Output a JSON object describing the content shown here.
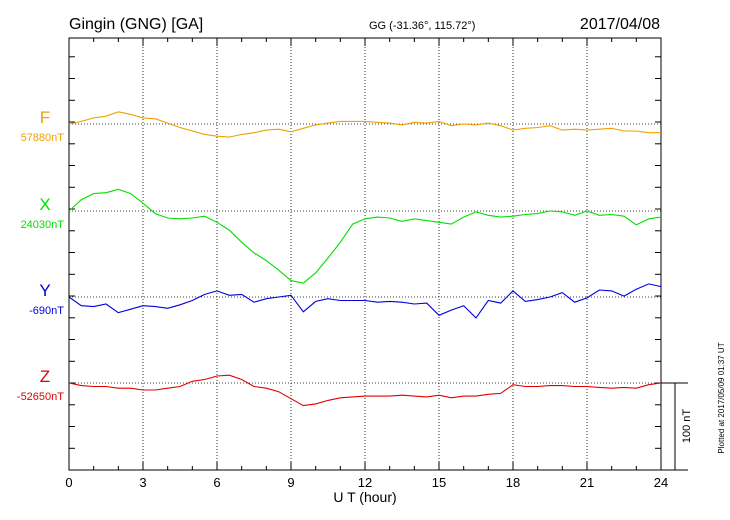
{
  "header": {
    "station": "Gingin (GNG)  [GA]",
    "coords": "GG (-31.36°, 115.72°)",
    "date": "2017/04/08"
  },
  "plotted_note": "Plotted at 2017/05/09 01:37 UT",
  "scale_bar_label": "100 nT",
  "chart_data": {
    "type": "line",
    "xlabel": "U T (hour)",
    "xlim": [
      0,
      24
    ],
    "xticks": [
      0,
      3,
      6,
      9,
      12,
      15,
      18,
      21,
      24
    ],
    "scale_nT_per_bar": 100,
    "series": [
      {
        "name": "F",
        "baseline_label": "57880nT",
        "color": "#f0a000",
        "x": [
          0,
          0.5,
          1,
          1.5,
          2,
          2.5,
          3,
          3.5,
          4,
          4.5,
          5,
          5.5,
          6,
          6.5,
          7,
          7.5,
          8,
          8.5,
          9,
          9.5,
          10,
          10.5,
          11,
          11.5,
          12,
          12.5,
          13,
          13.5,
          14,
          14.5,
          15,
          15.5,
          16,
          16.5,
          17,
          17.5,
          18,
          18.5,
          19,
          19.5,
          20,
          20.5,
          21,
          21.5,
          22,
          22.5,
          23,
          23.5,
          24
        ],
        "values": [
          57890,
          57893,
          57897,
          57899,
          57904,
          57901,
          57897,
          57896,
          57891,
          57886,
          57882,
          57878,
          57876,
          57875,
          57878,
          57880,
          57883,
          57884,
          57881,
          57885,
          57889,
          57891,
          57893,
          57893,
          57893,
          57892,
          57891,
          57889,
          57892,
          57891,
          57893,
          57888,
          57890,
          57889,
          57891,
          57888,
          57883,
          57885,
          57886,
          57888,
          57883,
          57884,
          57883,
          57884,
          57885,
          57882,
          57882,
          57880,
          57880
        ]
      },
      {
        "name": "X",
        "baseline_label": "24030nT",
        "color": "#00e000",
        "x": [
          0,
          0.5,
          1,
          1.5,
          2,
          2.5,
          3,
          3.5,
          4,
          4.5,
          5,
          5.5,
          6,
          6.5,
          7,
          7.5,
          8,
          8.5,
          9,
          9.5,
          10,
          10.5,
          11,
          11.5,
          12,
          12.5,
          13,
          13.5,
          14,
          14.5,
          15,
          15.5,
          16,
          16.5,
          17,
          17.5,
          18,
          18.5,
          19,
          19.5,
          20,
          20.5,
          21,
          21.5,
          22,
          22.5,
          23,
          23.5,
          24
        ],
        "values": [
          24037,
          24050,
          24057,
          24058,
          24062,
          24057,
          24046,
          24034,
          24029,
          24028,
          24029,
          24031,
          24024,
          24015,
          24001,
          23989,
          23980,
          23969,
          23957,
          23954,
          23966,
          23983,
          24001,
          24022,
          24028,
          24030,
          24029,
          24025,
          24028,
          24026,
          24024,
          24022,
          24030,
          24036,
          24032,
          24030,
          24031,
          24033,
          24034,
          24037,
          24036,
          24032,
          24037,
          24032,
          24033,
          24031,
          24021,
          24028,
          24030
        ]
      },
      {
        "name": "Y",
        "baseline_label": "-690nT",
        "color": "#0000e0",
        "x": [
          0,
          0.5,
          1,
          1.5,
          2,
          2.5,
          3,
          3.5,
          4,
          4.5,
          5,
          5.5,
          6,
          6.5,
          7,
          7.5,
          8,
          8.5,
          9,
          9.5,
          10,
          10.5,
          11,
          11.5,
          12,
          12.5,
          13,
          13.5,
          14,
          14.5,
          15,
          15.5,
          16,
          16.5,
          17,
          17.5,
          18,
          18.5,
          19,
          19.5,
          20,
          20.5,
          21,
          21.5,
          22,
          22.5,
          23,
          23.5,
          24
        ],
        "values": [
          -690,
          -700,
          -701,
          -698,
          -708,
          -704,
          -700,
          -701,
          -703,
          -699,
          -694,
          -687,
          -683,
          -688,
          -687,
          -696,
          -692,
          -690,
          -688,
          -707,
          -695,
          -692,
          -694,
          -694,
          -694,
          -696,
          -695,
          -696,
          -698,
          -697,
          -711,
          -705,
          -700,
          -714,
          -694,
          -697,
          -683,
          -695,
          -693,
          -690,
          -685,
          -696,
          -691,
          -682,
          -683,
          -689,
          -681,
          -675,
          -678
        ]
      },
      {
        "name": "Z",
        "baseline_label": "-52650nT",
        "color": "#e00000",
        "x": [
          0,
          0.5,
          1,
          1.5,
          2,
          2.5,
          3,
          3.5,
          4,
          4.5,
          5,
          5.5,
          6,
          6.5,
          7,
          7.5,
          8,
          8.5,
          9,
          9.5,
          10,
          10.5,
          11,
          11.5,
          12,
          12.5,
          13,
          13.5,
          14,
          14.5,
          15,
          15.5,
          16,
          16.5,
          17,
          17.5,
          18,
          18.5,
          19,
          19.5,
          20,
          20.5,
          21,
          21.5,
          22,
          22.5,
          23,
          23.5,
          24
        ],
        "values": [
          -52650,
          -52653,
          -52654,
          -52654,
          -52656,
          -52656,
          -52658,
          -52658,
          -52656,
          -52654,
          -52648,
          -52646,
          -52642,
          -52641,
          -52646,
          -52654,
          -52656,
          -52660,
          -52668,
          -52676,
          -52674,
          -52670,
          -52667,
          -52666,
          -52665,
          -52665,
          -52665,
          -52664,
          -52665,
          -52666,
          -52664,
          -52667,
          -52665,
          -52665,
          -52663,
          -52662,
          -52652,
          -52654,
          -52654,
          -52653,
          -52653,
          -52654,
          -52654,
          -52655,
          -52656,
          -52655,
          -52656,
          -52652,
          -52650
        ]
      }
    ]
  }
}
